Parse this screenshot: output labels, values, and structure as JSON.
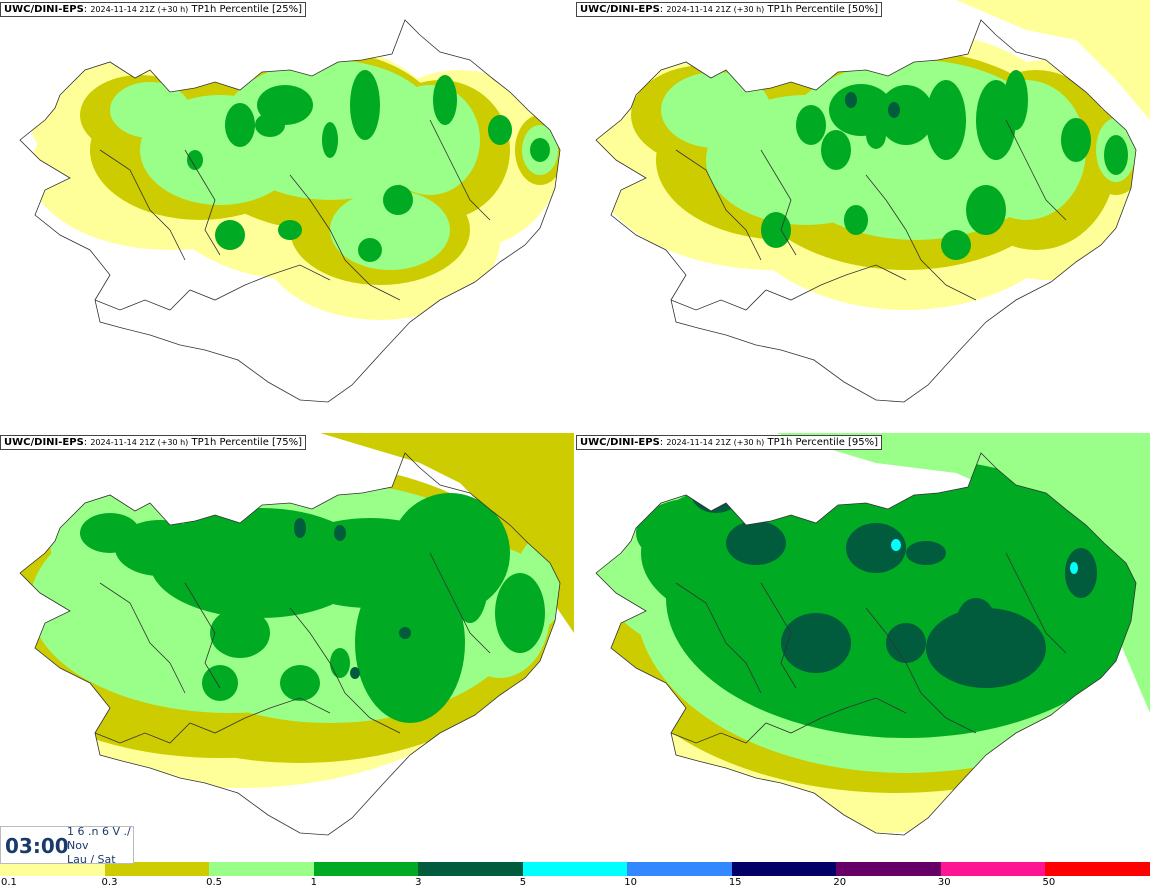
{
  "panels": [
    {
      "model": "UWC/DINI-EPS",
      "datetime": "2024-11-14 21Z (+30 h)",
      "field": "TP1h Percentile [25%]"
    },
    {
      "model": "UWC/DINI-EPS",
      "datetime": "2024-11-14 21Z (+30 h)",
      "field": "TP1h Percentile [50%]"
    },
    {
      "model": "UWC/DINI-EPS",
      "datetime": "2024-11-14 21Z (+30 h)",
      "field": "TP1h Percentile [75%]"
    },
    {
      "model": "UWC/DINI-EPS",
      "datetime": "2024-11-14 21Z (+30 h)",
      "field": "TP1h Percentile [95%]"
    }
  ],
  "valid_time": {
    "time": "03:00",
    "day": "1 6 .n 6 V ./",
    "month": "Nov",
    "weekday": "Lau / Sat"
  },
  "colorbar": {
    "colors": [
      "#ffff99",
      "#cccc00",
      "#99ff88",
      "#00aa22",
      "#005c3c",
      "#00ffff",
      "#3388ff",
      "#000066",
      "#660066",
      "#ff1493",
      "#ff0000"
    ],
    "labels": [
      "0.1",
      "0.3",
      "0.5",
      "1",
      "3",
      "5",
      "10",
      "15",
      "20",
      "30",
      "50"
    ]
  }
}
